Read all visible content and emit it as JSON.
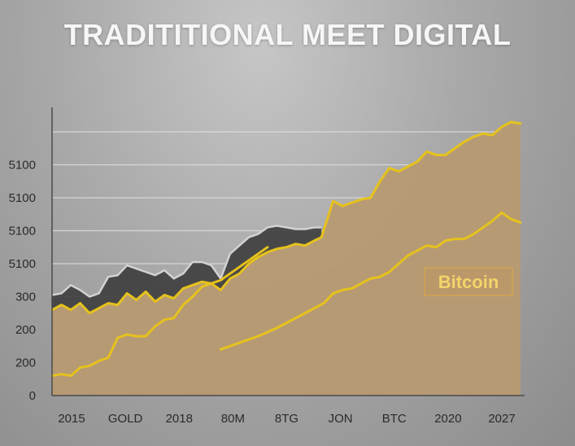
{
  "chart_data": {
    "type": "area",
    "title": "TRADITITIONAL MEET DIGITAL",
    "xlabel": "",
    "ylabel": "",
    "x_tick_labels": [
      "2015",
      "GOLD",
      "2018",
      "80M",
      "8TG",
      "JON",
      "BTC",
      "2020",
      "2027"
    ],
    "y_tick_labels": [
      "0",
      "200",
      "200",
      "300",
      "5100",
      "5100",
      "5100",
      "5100"
    ],
    "xlim": [
      0,
      100
    ],
    "ylim": [
      0,
      9
    ],
    "grid": true,
    "annotation": "Bitcoin",
    "colors": {
      "area": "#b79a73",
      "dark_band": "#3d3d3d",
      "light_band": "#d2d2d2",
      "line": "#e6c21c",
      "grid": "#dedede",
      "axis": "#4a4a4a"
    },
    "series": [
      {
        "style": "area-line",
        "x": [
          0,
          2,
          4,
          6,
          8,
          10,
          12,
          14,
          16,
          18,
          20,
          22,
          24,
          26,
          28,
          30,
          32,
          34,
          36,
          38,
          40,
          42,
          44,
          46,
          48,
          50,
          52,
          54,
          56,
          57.5,
          60,
          62,
          64,
          66,
          68,
          70,
          72,
          74,
          76,
          78,
          80,
          82,
          84,
          86,
          88,
          90,
          92,
          94,
          96,
          98,
          100
        ],
        "values": [
          2.6,
          2.75,
          2.6,
          2.8,
          2.5,
          2.65,
          2.8,
          2.75,
          3.1,
          2.9,
          3.15,
          2.85,
          3.05,
          2.95,
          3.25,
          3.35,
          3.45,
          3.4,
          3.2,
          3.55,
          3.7,
          4.0,
          4.2,
          4.35,
          4.45,
          4.5,
          4.6,
          4.55,
          4.7,
          4.8,
          5.9,
          5.75,
          5.85,
          5.95,
          6.0,
          6.5,
          6.9,
          6.8,
          6.95,
          7.1,
          7.4,
          7.3,
          7.3,
          7.5,
          7.7,
          7.85,
          7.95,
          7.9,
          8.15,
          8.3,
          8.25
        ]
      },
      {
        "style": "line",
        "x": [
          0,
          2,
          4,
          6,
          8,
          10,
          12,
          14,
          16,
          18,
          20,
          22,
          24,
          26,
          28,
          30,
          32,
          34,
          36,
          38,
          40,
          42,
          44,
          46
        ],
        "values": [
          0.6,
          0.65,
          0.6,
          0.85,
          0.9,
          1.05,
          1.15,
          1.75,
          1.85,
          1.8,
          1.8,
          2.1,
          2.3,
          2.35,
          2.75,
          3.0,
          3.3,
          3.4,
          3.5,
          3.7,
          3.9,
          4.1,
          4.3,
          4.5
        ]
      },
      {
        "style": "line",
        "x": [
          36,
          40,
          44,
          48,
          50,
          54,
          58,
          60,
          62,
          64,
          66,
          68,
          70,
          72,
          74,
          76,
          78,
          80,
          82,
          84,
          86,
          88,
          90,
          92,
          94,
          96,
          98,
          100
        ],
        "values": [
          1.4,
          1.6,
          1.8,
          2.05,
          2.2,
          2.5,
          2.8,
          3.1,
          3.2,
          3.25,
          3.4,
          3.55,
          3.6,
          3.75,
          4.0,
          4.25,
          4.4,
          4.55,
          4.5,
          4.7,
          4.75,
          4.75,
          4.9,
          5.1,
          5.3,
          5.55,
          5.35,
          5.25
        ]
      }
    ]
  }
}
